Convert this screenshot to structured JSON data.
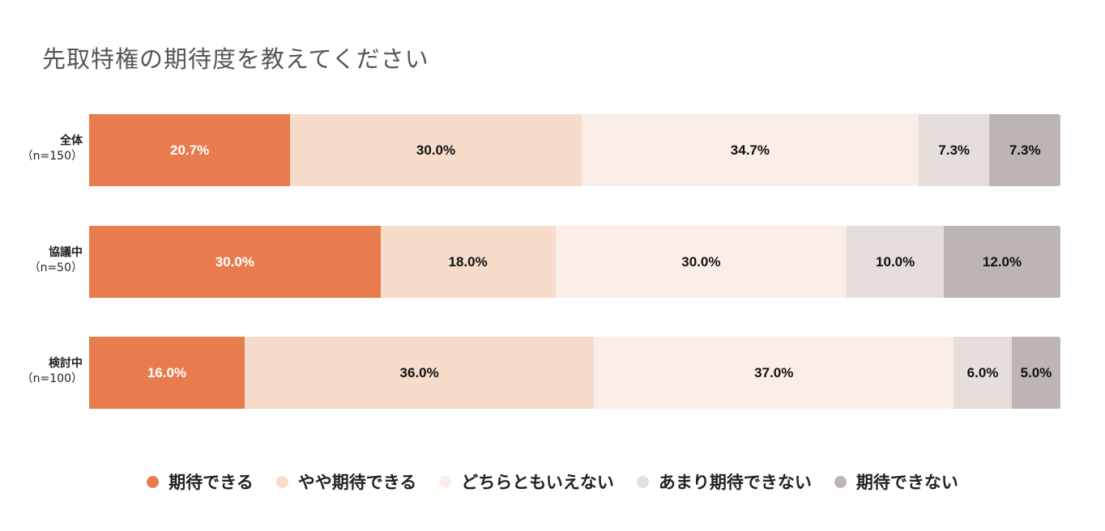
{
  "chart_data": {
    "type": "bar",
    "orientation": "horizontal-stacked-100",
    "title": "先取特権の期待度を教えてください",
    "categories": [
      {
        "name": "全体",
        "n": "（n=150）"
      },
      {
        "name": "協議中",
        "n": "（n=50）"
      },
      {
        "name": "検討中",
        "n": "（n=100）"
      }
    ],
    "series": [
      {
        "name": "期待できる",
        "color": "#E97C4E",
        "text_color": "#ffffff",
        "values": [
          20.7,
          30.0,
          16.0
        ]
      },
      {
        "name": "やや期待できる",
        "color": "#F7DCCC",
        "text_color": "#111111",
        "values": [
          30.0,
          18.0,
          36.0
        ]
      },
      {
        "name": "どちらともいえない",
        "color": "#FBEDE8",
        "text_color": "#111111",
        "values": [
          34.7,
          30.0,
          37.0
        ]
      },
      {
        "name": "あまり期待できない",
        "color": "#E5DEDB",
        "text_color": "#111111",
        "values": [
          7.3,
          10.0,
          6.0
        ]
      },
      {
        "name": "期待できない",
        "color": "#BDB5B4",
        "text_color": "#111111",
        "values": [
          7.3,
          12.0,
          5.0
        ]
      }
    ],
    "value_format": "percent-1dp",
    "legend_position": "bottom",
    "grid": false
  }
}
